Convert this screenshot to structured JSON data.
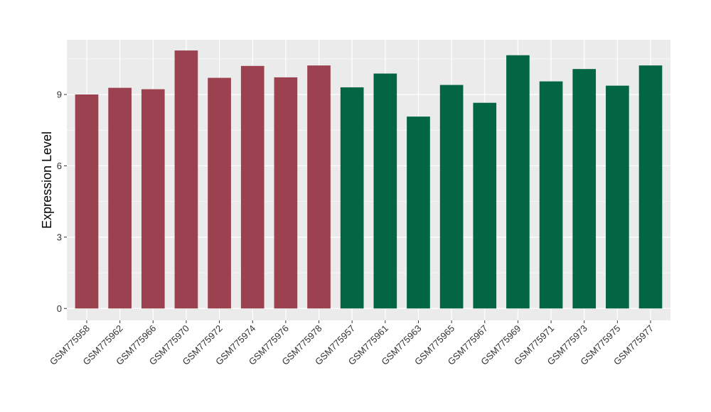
{
  "chart_data": {
    "type": "bar",
    "ylabel": "Expression Level",
    "xlabel": "",
    "ylim": [
      -0.5,
      11.3
    ],
    "yticks": [
      0,
      3,
      6,
      9
    ],
    "yticks_labels": [
      "0",
      "3",
      "6",
      "9"
    ],
    "grid": true,
    "categories": [
      "GSM775958",
      "GSM775962",
      "GSM775966",
      "GSM775970",
      "GSM775972",
      "GSM775974",
      "GSM775976",
      "GSM775978",
      "GSM775957",
      "GSM775961",
      "GSM775963",
      "GSM775965",
      "GSM775967",
      "GSM775969",
      "GSM775971",
      "GSM775973",
      "GSM775975",
      "GSM775977"
    ],
    "values": [
      9.0,
      9.28,
      9.22,
      10.85,
      9.7,
      10.2,
      9.72,
      10.22,
      9.3,
      9.88,
      8.07,
      9.4,
      8.65,
      10.65,
      9.55,
      10.07,
      9.37,
      10.22
    ],
    "bar_colors": [
      "#9b4150",
      "#9b4150",
      "#9b4150",
      "#9b4150",
      "#9b4150",
      "#9b4150",
      "#9b4150",
      "#9b4150",
      "#026645",
      "#026645",
      "#026645",
      "#026645",
      "#026645",
      "#026645",
      "#026645",
      "#026645",
      "#026645",
      "#026645"
    ],
    "panel_background": "#ebebeb",
    "grid_color": "#ffffff"
  }
}
